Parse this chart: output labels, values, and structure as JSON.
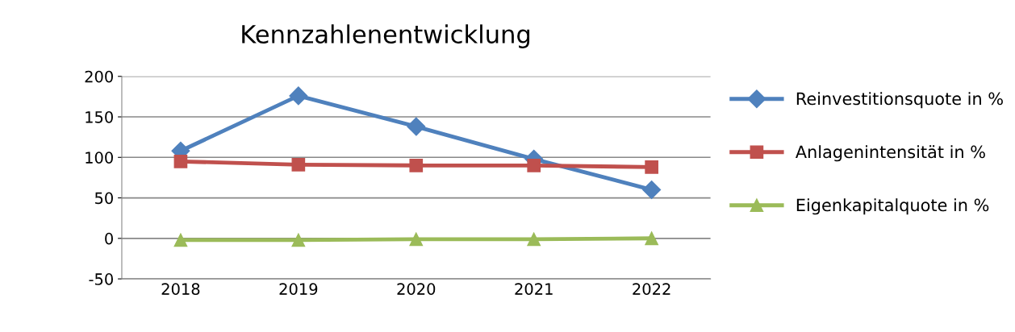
{
  "chart_data": {
    "type": "line",
    "title": "Kennzahlenentwicklung",
    "categories": [
      "2018",
      "2019",
      "2020",
      "2021",
      "2022"
    ],
    "series": [
      {
        "name": "Reinvestitionsquote in %",
        "color": "#4f81bd",
        "marker": "diamond",
        "values": [
          108,
          176,
          138,
          98,
          60
        ]
      },
      {
        "name": "Anlagenintensität in %",
        "color": "#c0504d",
        "marker": "square",
        "values": [
          95,
          91,
          90,
          90,
          88
        ]
      },
      {
        "name": "Eigenkapitalquote in %",
        "color": "#9bbb59",
        "marker": "triangle",
        "values": [
          -2,
          -2,
          -1,
          -1,
          0
        ]
      }
    ],
    "ylim": [
      -50,
      200
    ],
    "yticks": [
      -50,
      0,
      50,
      100,
      150,
      200
    ],
    "grid": "y",
    "legend": "right",
    "line_style": "solid"
  }
}
